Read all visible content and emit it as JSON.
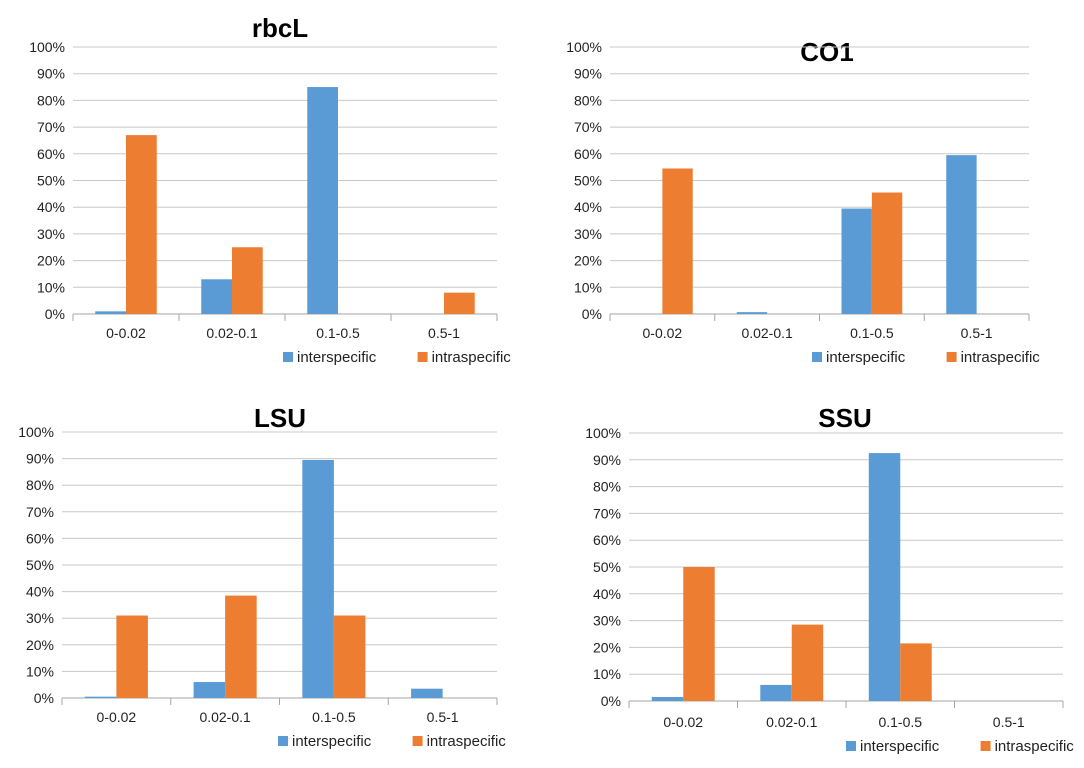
{
  "colors": {
    "interspecific": "#5B9BD5",
    "intraspecific": "#ED7D31",
    "gridline": "#C8C8C8"
  },
  "chart_data": [
    {
      "type": "bar",
      "title": "rbcL",
      "categories": [
        "0-0.02",
        "0.02-0.1",
        "0.1-0.5",
        "0.5-1"
      ],
      "series": [
        {
          "name": "interspecific",
          "values": [
            1,
            13,
            85,
            0
          ]
        },
        {
          "name": "intraspecific",
          "values": [
            67,
            25,
            0,
            8
          ]
        }
      ],
      "ylim": [
        0,
        100
      ],
      "yticks": [
        "0%",
        "10%",
        "20%",
        "30%",
        "40%",
        "50%",
        "60%",
        "70%",
        "80%",
        "90%",
        "100%"
      ],
      "grid": true,
      "legend": "bottom-right"
    },
    {
      "type": "bar",
      "title": "CO1",
      "categories": [
        "0-0.02",
        "0.02-0.1",
        "0.1-0.5",
        "0.5-1"
      ],
      "series": [
        {
          "name": "interspecific",
          "values": [
            0,
            0.7,
            39.5,
            59.5
          ]
        },
        {
          "name": "intraspecific",
          "values": [
            54.5,
            0,
            45.5,
            0
          ]
        }
      ],
      "ylim": [
        0,
        100
      ],
      "yticks": [
        "0%",
        "10%",
        "20%",
        "30%",
        "40%",
        "50%",
        "60%",
        "70%",
        "80%",
        "90%",
        "100%"
      ],
      "grid": true,
      "legend": "bottom-right"
    },
    {
      "type": "bar",
      "title": "LSU",
      "categories": [
        "0-0.02",
        "0.02-0.1",
        "0.1-0.5",
        "0.5-1"
      ],
      "series": [
        {
          "name": "interspecific",
          "values": [
            0.5,
            6,
            89.5,
            3.5
          ]
        },
        {
          "name": "intraspecific",
          "values": [
            31,
            38.5,
            31,
            0
          ]
        }
      ],
      "ylim": [
        0,
        100
      ],
      "yticks": [
        "0%",
        "10%",
        "20%",
        "30%",
        "40%",
        "50%",
        "60%",
        "70%",
        "80%",
        "90%",
        "100%"
      ],
      "grid": true,
      "legend": "bottom-right"
    },
    {
      "type": "bar",
      "title": "SSU",
      "categories": [
        "0-0.02",
        "0.02-0.1",
        "0.1-0.5",
        "0.5-1"
      ],
      "series": [
        {
          "name": "interspecific",
          "values": [
            1.5,
            6,
            92.5,
            0
          ]
        },
        {
          "name": "intraspecific",
          "values": [
            50,
            28.5,
            21.5,
            0
          ]
        }
      ],
      "ylim": [
        0,
        100
      ],
      "yticks": [
        "0%",
        "10%",
        "20%",
        "30%",
        "40%",
        "50%",
        "60%",
        "70%",
        "80%",
        "90%",
        "100%"
      ],
      "grid": true,
      "legend": "bottom-right"
    }
  ]
}
